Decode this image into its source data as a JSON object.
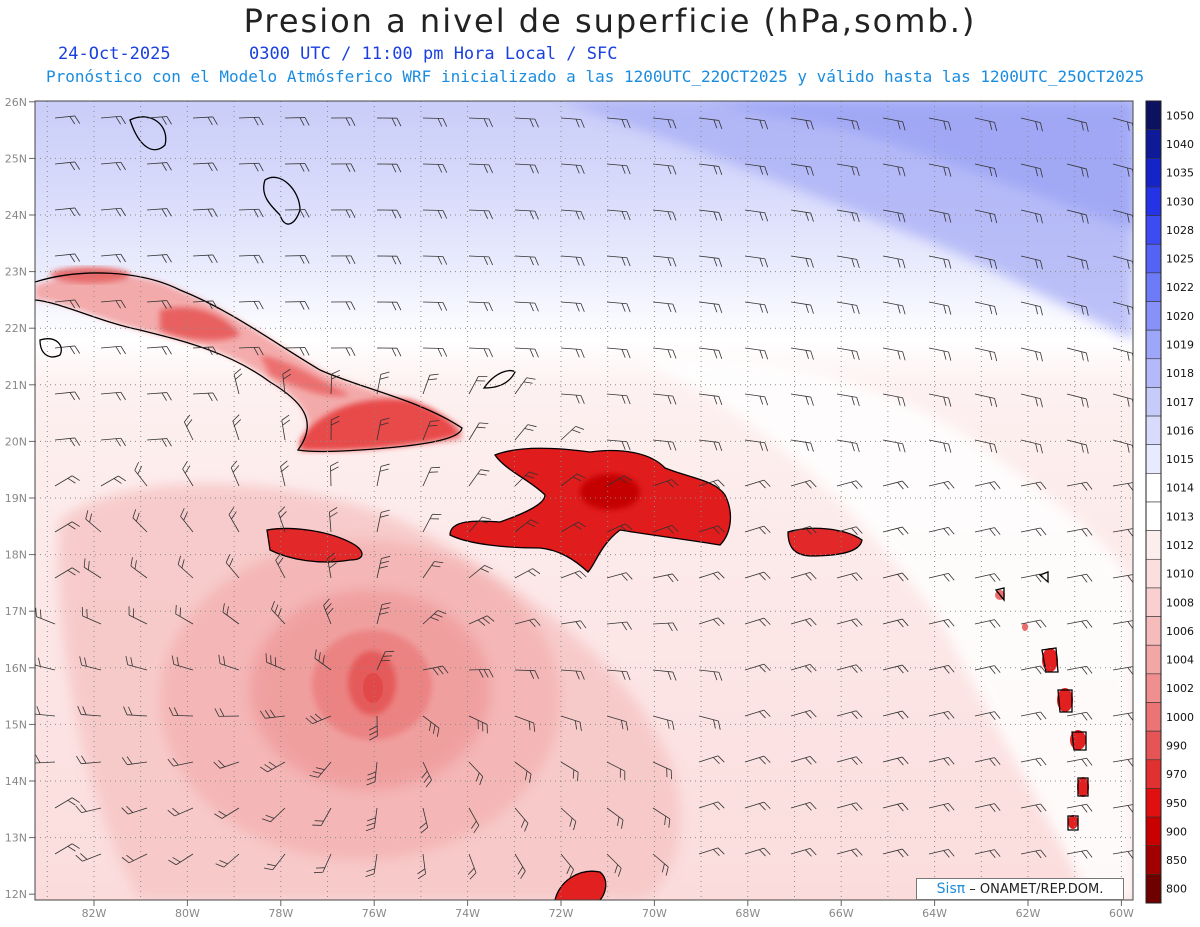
{
  "header": {
    "title": "Presion a nivel de superficie (hPa,somb.)",
    "date": "24-Oct-2025",
    "time": "0300 UTC / 11:00 pm Hora Local / SFC",
    "forecast": "Pronóstico con el Modelo Atmósferico WRF inicializado a las 1200UTC_22OCT2025 y válido hasta las  1200UTC_25OCT2025"
  },
  "map": {
    "lat_labels": [
      "26N",
      "25N",
      "24N",
      "23N",
      "22N",
      "21N",
      "20N",
      "19N",
      "18N",
      "17N",
      "16N",
      "15N",
      "14N",
      "13N",
      "12N"
    ],
    "lon_labels": [
      "82W",
      "80W",
      "78W",
      "76W",
      "74W",
      "72W",
      "70W",
      "68W",
      "66W",
      "64W",
      "62W",
      "60W"
    ]
  },
  "colorbar": {
    "levels": [
      {
        "label": "1050",
        "color": "#0c1160"
      },
      {
        "label": "1040",
        "color": "#0e1a98"
      },
      {
        "label": "1035",
        "color": "#1524c8"
      },
      {
        "label": "1030",
        "color": "#2433e6"
      },
      {
        "label": "1028",
        "color": "#3d4cf2"
      },
      {
        "label": "1025",
        "color": "#5563f5"
      },
      {
        "label": "1022",
        "color": "#6e7bf6"
      },
      {
        "label": "1020",
        "color": "#8791f7"
      },
      {
        "label": "1019",
        "color": "#9da6f8"
      },
      {
        "label": "1018",
        "color": "#b3b9f9"
      },
      {
        "label": "1017",
        "color": "#c6cbfa"
      },
      {
        "label": "1016",
        "color": "#d8dbfb"
      },
      {
        "label": "1015",
        "color": "#e8eafd"
      },
      {
        "label": "1014",
        "color": "#ffffff"
      },
      {
        "label": "1013",
        "color": "#ffffff"
      },
      {
        "label": "1012",
        "color": "#fdeeee"
      },
      {
        "label": "1010",
        "color": "#fbdfdf"
      },
      {
        "label": "1008",
        "color": "#f9cfcf"
      },
      {
        "label": "1006",
        "color": "#f6bcbc"
      },
      {
        "label": "1004",
        "color": "#f3a6a6"
      },
      {
        "label": "1002",
        "color": "#ef8f8f"
      },
      {
        "label": "1000",
        "color": "#eb7575"
      },
      {
        "label": "990",
        "color": "#e55555"
      },
      {
        "label": "970",
        "color": "#e03030"
      },
      {
        "label": "950",
        "color": "#e01010"
      },
      {
        "label": "900",
        "color": "#c80000"
      },
      {
        "label": "850",
        "color": "#a00000"
      },
      {
        "label": "800",
        "color": "#6e0000"
      }
    ]
  },
  "footer": {
    "brand": "Sisπ",
    "org": " – ONAMET/REP.DOM."
  }
}
